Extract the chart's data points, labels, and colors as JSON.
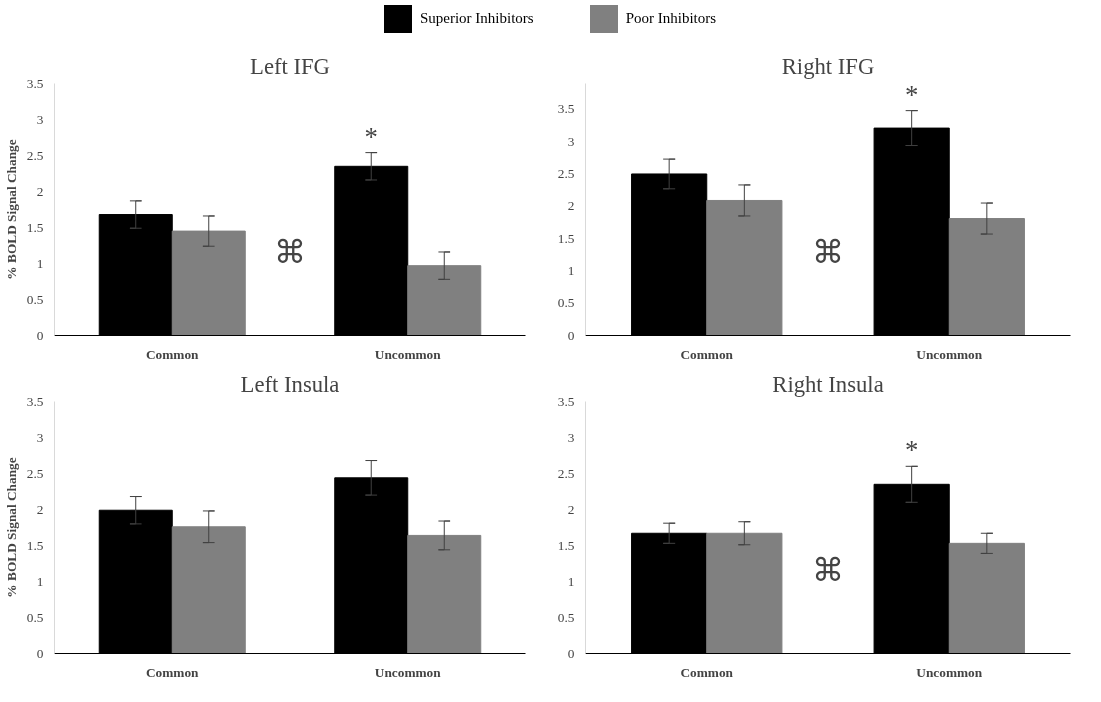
{
  "chart_data": [
    {
      "type": "bar",
      "title": "Left IFG",
      "ylabel": "% BOLD Signal Change",
      "categories": [
        "Common",
        "Uncommon"
      ],
      "legend": "top",
      "series": [
        {
          "name": "Superior Inhibitors",
          "color": "#000000",
          "values": [
            1.68,
            2.35
          ],
          "errors": [
            0.19,
            0.19
          ]
        },
        {
          "name": "Poor Inhibitors",
          "color": "#808080",
          "values": [
            1.45,
            0.97
          ],
          "errors": [
            0.21,
            0.19
          ]
        }
      ],
      "ylim": [
        0,
        3.5
      ],
      "yticks": [
        0,
        0.5,
        1,
        1.5,
        2,
        2.5,
        3,
        3.5
      ],
      "grid": false,
      "annotations": [
        "*",
        "⌘"
      ]
    },
    {
      "type": "bar",
      "title": "Right IFG",
      "categories": [
        "Common",
        "Uncommon"
      ],
      "series": [
        {
          "color": "#000000",
          "values": [
            2.5,
            3.21
          ],
          "errors": [
            0.23,
            0.27
          ]
        },
        {
          "color": "#808080",
          "values": [
            2.09,
            1.81
          ],
          "errors": [
            0.24,
            0.24
          ]
        }
      ],
      "ylim": [
        0,
        3.9
      ],
      "yticks": [
        0,
        0.5,
        1,
        1.5,
        2,
        2.5,
        3,
        3.5
      ],
      "grid": false,
      "annotations": [
        "*",
        "⌘"
      ]
    },
    {
      "type": "bar",
      "title": "Left Insula",
      "ylabel": "% BOLD Signal Change",
      "categories": [
        "Common",
        "Uncommon"
      ],
      "series": [
        {
          "color": "#000000",
          "values": [
            1.99,
            2.44
          ],
          "errors": [
            0.19,
            0.24
          ]
        },
        {
          "color": "#808080",
          "values": [
            1.76,
            1.64
          ],
          "errors": [
            0.22,
            0.2
          ]
        }
      ],
      "ylim": [
        0,
        3.5
      ],
      "yticks": [
        0,
        0.5,
        1,
        1.5,
        2,
        2.5,
        3,
        3.5
      ],
      "grid": false
    },
    {
      "type": "bar",
      "title": "Right Insula",
      "categories": [
        "Common",
        "Uncommon"
      ],
      "series": [
        {
          "color": "#000000",
          "values": [
            1.67,
            2.35
          ],
          "errors": [
            0.14,
            0.25
          ]
        },
        {
          "color": "#808080",
          "values": [
            1.67,
            1.53
          ],
          "errors": [
            0.16,
            0.14
          ]
        }
      ],
      "ylim": [
        0,
        3.5
      ],
      "yticks": [
        0,
        0.5,
        1,
        1.5,
        2,
        2.5,
        3,
        3.5
      ],
      "grid": false,
      "annotations": [
        "*",
        "⌘"
      ]
    }
  ]
}
